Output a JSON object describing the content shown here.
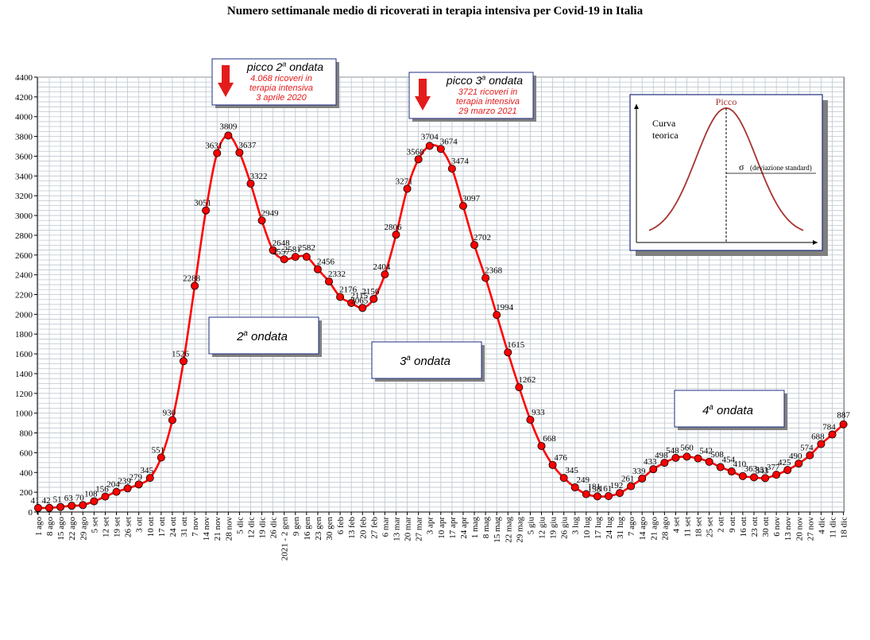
{
  "chart_data": {
    "type": "line",
    "title": "Numero settimanale medio di ricoverati in terapia intensiva per Covid-19 in Italia",
    "xlabel": "",
    "ylabel": "",
    "ylim": [
      0,
      4400
    ],
    "yticks": [
      0,
      200,
      400,
      600,
      800,
      1000,
      1200,
      1400,
      1600,
      1800,
      2000,
      2200,
      2400,
      2600,
      2800,
      3000,
      3200,
      3400,
      3600,
      3800,
      4000,
      4200,
      4400
    ],
    "grid": true,
    "line_color": "#ff0000",
    "marker_color": "#ff0000",
    "categories": [
      "1 ago",
      "8 ago",
      "15 ago",
      "22 ago",
      "29 ago",
      "5 set",
      "12 set",
      "19 set",
      "26 set",
      "3 ott",
      "10 ott",
      "17 ott",
      "24 ott",
      "31 ott",
      "7 nov",
      "14 nov",
      "21 nov",
      "28 nov",
      "5 dic",
      "12 dic",
      "19 dic",
      "26 dic",
      "2021 - 2 gen",
      "9 gen",
      "16 gen",
      "23 gen",
      "30 gen",
      "6 feb",
      "13 feb",
      "20 feb",
      "27 feb",
      "6 mar",
      "13 mar",
      "20 mar",
      "27 mar",
      "3 apr",
      "10 apr",
      "17 apr",
      "24 apr",
      "1 mag",
      "8 mag",
      "15 mag",
      "22 mag",
      "29 mag",
      "5 giu",
      "12 giu",
      "19 giu",
      "26 giu",
      "3 lug",
      "10 lug",
      "17 lug",
      "24 lug",
      "31 lug",
      "7 ago",
      "14 ago",
      "21 ago",
      "28 ago",
      "4 set",
      "11 set",
      "18 set",
      "25 set",
      "2 ott",
      "9 ott",
      "16 ott",
      "23 ott",
      "30 ott",
      "6 nov",
      "13 nov",
      "20 nov",
      "27 nov",
      "4 dic",
      "11 dic",
      "18 dic"
    ],
    "x_tick_labels": [
      "1 ago",
      "8 ago",
      "15 ago",
      "22 ago",
      "29 ago",
      "5 set",
      "12 set",
      "19 set",
      "26 set",
      "3 ott",
      "10 ott",
      "17 ott",
      "24 ott",
      "31 ott",
      "7 nov",
      "14 nov",
      "21 nov",
      "28 nov",
      "5 dic",
      "12 dic",
      "19 dic",
      "26 dic",
      "2 gen",
      "9 gen",
      "16 gen",
      "23 gen",
      "30 gen",
      "6 feb",
      "13 feb",
      "20 feb",
      "27 feb",
      "6 mar",
      "13 mar",
      "20 mar",
      "27 mar",
      "3 apr",
      "10 apr",
      "17 apr",
      "24 apr",
      "1 mag",
      "8 mag",
      "15 mag",
      "22 mag",
      "29 mag",
      "5 giu",
      "12 giu",
      "19 giu",
      "26 giu",
      "3 lug",
      "10 lug",
      "17 lug",
      "24 lug",
      "31 lug",
      "7 ago",
      "14 ago",
      "21 ago",
      "28 ago",
      "4 set",
      "11 set",
      "18 set",
      "25 set",
      "2 ott",
      "9 ott",
      "16 ott",
      "23 ott",
      "30 ott",
      "6 nov",
      "13 nov",
      "20 nov",
      "27 nov",
      "4 dic",
      "11 dic",
      "18 dic"
    ],
    "x_year_prefix": "2021 -",
    "values": [
      41,
      42,
      51,
      63,
      70,
      108,
      156,
      204,
      239,
      279,
      345,
      551,
      930,
      1526,
      2288,
      3051,
      3631,
      3809,
      3637,
      3322,
      2949,
      2648,
      2557,
      2581,
      2582,
      2456,
      2332,
      2176,
      2115,
      2065,
      2156,
      2404,
      2806,
      3271,
      3568,
      3704,
      3674,
      3474,
      3097,
      2702,
      2368,
      1994,
      1615,
      1262,
      933,
      668,
      476,
      345,
      249,
      181,
      158,
      161,
      192,
      261,
      339,
      433,
      498,
      548,
      560,
      542,
      508,
      454,
      410,
      363,
      351,
      343,
      377,
      425,
      490,
      574,
      688,
      784,
      887
    ],
    "value_labels": [
      "41",
      "42",
      "51",
      "63",
      "70",
      "108",
      "156",
      "204",
      "239",
      "279",
      "345",
      "551",
      "930",
      "1526",
      "2288",
      "3051",
      "3631",
      "3809",
      "3637",
      "3322",
      "2949",
      "2648",
      "2557",
      "2581",
      "2582",
      "2456",
      "2332",
      "2176",
      "2115",
      "2065",
      "2156",
      "2404",
      "2806",
      "3271",
      "3568",
      "3704",
      "3674",
      "3474",
      "3097",
      "2702",
      "2368",
      "1994",
      "1615",
      "1262",
      "933",
      "668",
      "476",
      "345",
      "249",
      "181",
      "158",
      "161",
      "192",
      "261",
      "339",
      "433",
      "498",
      "548",
      "560",
      "542",
      "508",
      "454",
      "410",
      "363",
      "351",
      "343",
      "377",
      "425",
      "490",
      "574",
      "688",
      "784",
      "887"
    ],
    "annotations": {
      "peak2": {
        "heading": "picco 2",
        "sup": "a",
        "heading_tail": " ondata",
        "lines": [
          "4.068 ricoveri in",
          "terapia intensiva",
          "3 aprile 2020"
        ]
      },
      "peak3": {
        "heading": "picco 3",
        "sup": "a",
        "heading_tail": " ondata",
        "lines": [
          "3721 ricoveri in",
          "terapia intensiva",
          "29 marzo 2021"
        ]
      },
      "wave2": {
        "number": "2",
        "sup": "a",
        "tail": " ondata"
      },
      "wave3": {
        "number": "3",
        "sup": "a",
        "tail": " ondata"
      },
      "wave4": {
        "number": "4",
        "sup": "a",
        "tail": " ondata"
      }
    },
    "inset": {
      "peak_label": "Picco",
      "curve_label_1": "Curva",
      "curve_label_2": "teorica",
      "sigma": "σ",
      "sigma_label": "(deviazione standard)",
      "curve_color": "#a83232"
    }
  }
}
